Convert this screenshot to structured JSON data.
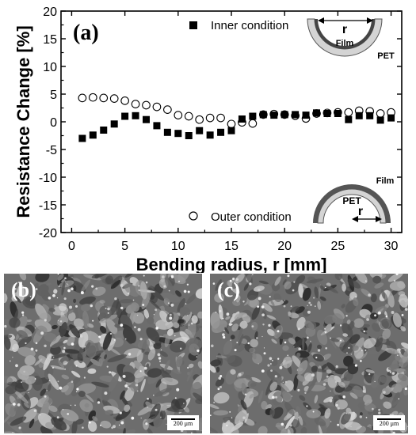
{
  "chart_data": {
    "type": "scatter",
    "panel_label": "(a)",
    "xlabel": "Bending radius, r [mm]",
    "ylabel": "Resistance Change [%]",
    "xlim": [
      -1,
      31
    ],
    "ylim": [
      -20,
      20
    ],
    "xticks": [
      0,
      5,
      10,
      15,
      20,
      25,
      30
    ],
    "yticks": [
      -20,
      -15,
      -10,
      -5,
      0,
      5,
      10,
      15,
      20
    ],
    "grid": false,
    "legend_position": "inside, top-right and bottom-right",
    "series": [
      {
        "name": "Inner condition",
        "marker": "filled-square",
        "color": "#000000",
        "x": [
          1,
          2,
          3,
          4,
          5,
          6,
          7,
          8,
          9,
          10,
          11,
          12,
          13,
          14,
          15,
          16,
          17,
          18,
          19,
          20,
          21,
          22,
          23,
          24,
          25,
          26,
          27,
          28,
          29,
          30
        ],
        "y": [
          -3.0,
          -2.4,
          -1.5,
          -0.4,
          1.0,
          1.1,
          0.4,
          -0.7,
          -1.9,
          -2.1,
          -2.5,
          -1.6,
          -2.4,
          -1.9,
          -1.6,
          0.5,
          1.0,
          1.3,
          1.2,
          1.3,
          1.3,
          1.2,
          1.6,
          1.5,
          1.5,
          0.4,
          1.1,
          1.1,
          0.3,
          0.7
        ]
      },
      {
        "name": "Outer condition",
        "marker": "open-circle",
        "color": "#000000",
        "x": [
          1,
          2,
          3,
          4,
          5,
          6,
          7,
          8,
          9,
          10,
          11,
          12,
          13,
          14,
          15,
          16,
          17,
          18,
          19,
          20,
          21,
          22,
          23,
          24,
          25,
          26,
          27,
          28,
          29,
          30
        ],
        "y": [
          4.3,
          4.4,
          4.3,
          4.2,
          3.8,
          3.2,
          3.0,
          2.7,
          2.2,
          1.2,
          1.0,
          0.4,
          0.7,
          0.7,
          -0.4,
          -0.1,
          -0.3,
          1.3,
          1.4,
          1.3,
          1.1,
          0.6,
          1.5,
          1.6,
          1.7,
          1.7,
          2.0,
          1.9,
          1.5,
          1.7
        ]
      }
    ],
    "inset_inner": {
      "r_label": "r",
      "film_label": "Film",
      "pet_label": "PET"
    },
    "inset_outer": {
      "r_label": "r",
      "film_label": "Film",
      "pet_label": "PET"
    }
  },
  "micrographs": [
    {
      "label": "(b)",
      "scale_bar": "200 μm"
    },
    {
      "label": "(c)",
      "scale_bar": "200 μm"
    }
  ]
}
